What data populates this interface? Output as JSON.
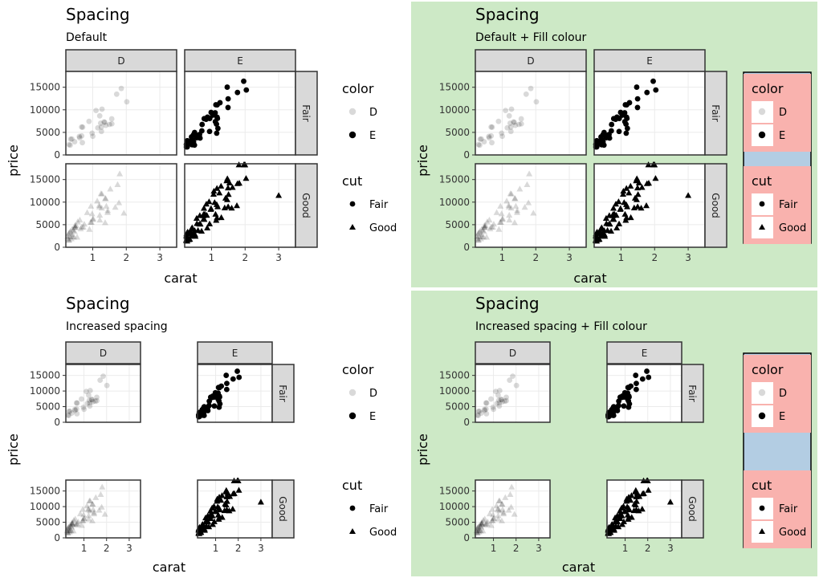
{
  "chart_data": [
    {
      "type": "scatter",
      "title": "Spacing",
      "subtitle": "Default",
      "xlabel": "carat",
      "ylabel": "price",
      "xlim": [
        0.2,
        3.5
      ],
      "ylim": [
        0,
        18500
      ],
      "x_ticks": [
        1,
        2,
        3
      ],
      "y_ticks": [
        0,
        5000,
        10000,
        15000
      ],
      "facet_cols": [
        "D",
        "E"
      ],
      "facet_rows": [
        "Fair",
        "Good"
      ],
      "legends": [
        {
          "title": "color",
          "entries": [
            {
              "label": "D",
              "alpha": 0.15,
              "shape": "circle"
            },
            {
              "label": "E",
              "alpha": 1,
              "shape": "circle"
            }
          ]
        },
        {
          "title": "cut",
          "entries": [
            {
              "label": "Fair",
              "shape": "circle"
            },
            {
              "label": "Good",
              "shape": "triangle"
            }
          ]
        }
      ],
      "background": "#ffffff",
      "legend_fill": "none",
      "legend_box_fill": "none",
      "spacing": "default",
      "grid": true
    },
    {
      "type": "scatter",
      "title": "Spacing",
      "subtitle": "Default + Fill colour",
      "xlabel": "carat",
      "ylabel": "price",
      "xlim": [
        0.2,
        3.5
      ],
      "ylim": [
        0,
        18500
      ],
      "x_ticks": [
        1,
        2,
        3
      ],
      "y_ticks": [
        0,
        5000,
        10000,
        15000
      ],
      "facet_cols": [
        "D",
        "E"
      ],
      "facet_rows": [
        "Fair",
        "Good"
      ],
      "legends": [
        {
          "title": "color",
          "entries": [
            {
              "label": "D",
              "alpha": 0.15,
              "shape": "circle"
            },
            {
              "label": "E",
              "alpha": 1,
              "shape": "circle"
            }
          ]
        },
        {
          "title": "cut",
          "entries": [
            {
              "label": "Fair",
              "shape": "circle"
            },
            {
              "label": "Good",
              "shape": "triangle"
            }
          ]
        }
      ],
      "background": "#cde9c6",
      "legend_fill": "#f9b2ae",
      "legend_box_fill": "#b3cde3",
      "spacing": "default",
      "grid": true
    },
    {
      "type": "scatter",
      "title": "Spacing",
      "subtitle": "Increased spacing",
      "xlabel": "carat",
      "ylabel": "price",
      "xlim": [
        0.2,
        3.5
      ],
      "ylim": [
        0,
        18500
      ],
      "x_ticks": [
        1,
        2,
        3
      ],
      "y_ticks": [
        0,
        5000,
        10000,
        15000
      ],
      "facet_cols": [
        "D",
        "E"
      ],
      "facet_rows": [
        "Fair",
        "Good"
      ],
      "legends": [
        {
          "title": "color",
          "entries": [
            {
              "label": "D",
              "alpha": 0.15,
              "shape": "circle"
            },
            {
              "label": "E",
              "alpha": 1,
              "shape": "circle"
            }
          ]
        },
        {
          "title": "cut",
          "entries": [
            {
              "label": "Fair",
              "shape": "circle"
            },
            {
              "label": "Good",
              "shape": "triangle"
            }
          ]
        }
      ],
      "background": "#ffffff",
      "legend_fill": "none",
      "legend_box_fill": "none",
      "spacing": "increased",
      "grid": true
    },
    {
      "type": "scatter",
      "title": "Spacing",
      "subtitle": "Increased spacing + Fill colour",
      "xlabel": "carat",
      "ylabel": "price",
      "xlim": [
        0.2,
        3.5
      ],
      "ylim": [
        0,
        18500
      ],
      "x_ticks": [
        1,
        2,
        3
      ],
      "y_ticks": [
        0,
        5000,
        10000,
        15000
      ],
      "facet_cols": [
        "D",
        "E"
      ],
      "facet_rows": [
        "Fair",
        "Good"
      ],
      "legends": [
        {
          "title": "color",
          "entries": [
            {
              "label": "D",
              "alpha": 0.15,
              "shape": "circle"
            },
            {
              "label": "E",
              "alpha": 1,
              "shape": "circle"
            }
          ]
        },
        {
          "title": "cut",
          "entries": [
            {
              "label": "Fair",
              "shape": "circle"
            },
            {
              "label": "Good",
              "shape": "triangle"
            }
          ]
        }
      ],
      "background": "#cde9c6",
      "legend_fill": "#f9b2ae",
      "legend_box_fill": "#b3cde3",
      "spacing": "increased",
      "grid": true
    }
  ]
}
